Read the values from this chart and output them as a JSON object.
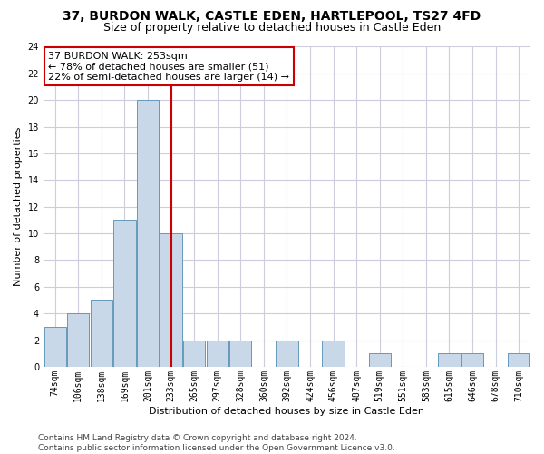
{
  "title": "37, BURDON WALK, CASTLE EDEN, HARTLEPOOL, TS27 4FD",
  "subtitle": "Size of property relative to detached houses in Castle Eden",
  "xlabel": "Distribution of detached houses by size in Castle Eden",
  "ylabel": "Number of detached properties",
  "bar_labels": [
    "74sqm",
    "106sqm",
    "138sqm",
    "169sqm",
    "201sqm",
    "233sqm",
    "265sqm",
    "297sqm",
    "328sqm",
    "360sqm",
    "392sqm",
    "424sqm",
    "456sqm",
    "487sqm",
    "519sqm",
    "551sqm",
    "583sqm",
    "615sqm",
    "646sqm",
    "678sqm",
    "710sqm"
  ],
  "bar_values": [
    3,
    4,
    5,
    11,
    20,
    10,
    2,
    2,
    2,
    0,
    2,
    0,
    2,
    0,
    1,
    0,
    0,
    1,
    1,
    0,
    1
  ],
  "bar_color": "#c8d8e8",
  "bar_edgecolor": "#6699bb",
  "vline_x": 5.0,
  "vline_color": "#cc0000",
  "annotation_line1": "37 BURDON WALK: 253sqm",
  "annotation_line2": "← 78% of detached houses are smaller (51)",
  "annotation_line3": "22% of semi-detached houses are larger (14) →",
  "annotation_box_edgecolor": "#cc0000",
  "annotation_box_facecolor": "#ffffff",
  "ylim": [
    0,
    24
  ],
  "yticks": [
    0,
    2,
    4,
    6,
    8,
    10,
    12,
    14,
    16,
    18,
    20,
    22,
    24
  ],
  "footer_text": "Contains HM Land Registry data © Crown copyright and database right 2024.\nContains public sector information licensed under the Open Government Licence v3.0.",
  "bg_color": "#ffffff",
  "grid_color": "#ccccdd",
  "title_fontsize": 10,
  "subtitle_fontsize": 9,
  "label_fontsize": 8,
  "tick_fontsize": 7,
  "annotation_fontsize": 8,
  "footer_fontsize": 6.5
}
